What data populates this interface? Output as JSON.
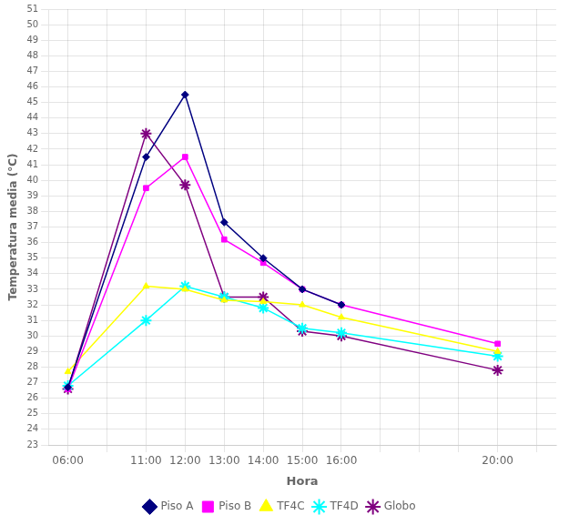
{
  "chart_data": {
    "type": "line",
    "xlabel": "Hora",
    "ylabel": "Temperatura media (°C)",
    "categories": [
      "06:00",
      null,
      "11:00",
      "12:00",
      "13:00",
      "14:00",
      "15:00",
      "16:00",
      null,
      null,
      null,
      "20:00",
      null
    ],
    "series": [
      {
        "name": "Piso A",
        "color": "#000080",
        "marker": "diamond",
        "values": [
          26.7,
          null,
          41.5,
          45.5,
          37.3,
          35.0,
          33.0,
          32.0,
          null,
          null,
          null,
          null,
          null
        ]
      },
      {
        "name": "Piso B",
        "color": "#FF00FF",
        "marker": "square",
        "values": [
          26.6,
          null,
          39.5,
          41.5,
          36.2,
          34.7,
          33.0,
          32.0,
          null,
          null,
          null,
          29.5,
          null
        ]
      },
      {
        "name": "TF4C",
        "color": "#FFFF00",
        "marker": "triangle",
        "values": [
          27.7,
          null,
          33.2,
          33.0,
          32.3,
          32.2,
          32.0,
          31.2,
          null,
          null,
          null,
          29.0,
          null
        ]
      },
      {
        "name": "TF4D",
        "color": "#00FFFF",
        "marker": "star",
        "values": [
          26.8,
          null,
          31.0,
          33.2,
          32.5,
          31.8,
          30.5,
          30.2,
          null,
          null,
          null,
          28.7,
          null
        ]
      },
      {
        "name": "Globo",
        "color": "#800080",
        "marker": "star",
        "values": [
          26.6,
          null,
          43.0,
          39.7,
          32.5,
          32.5,
          30.3,
          30.0,
          null,
          null,
          null,
          27.8,
          null
        ]
      }
    ],
    "ylim": [
      23,
      51
    ],
    "yticks": [
      23,
      24,
      25,
      26,
      27,
      28,
      29,
      30,
      31,
      32,
      33,
      34,
      35,
      36,
      37,
      38,
      39,
      40,
      41,
      42,
      43,
      44,
      45,
      46,
      47,
      48,
      49,
      50,
      51
    ],
    "grid": true,
    "legend": "bottom"
  }
}
